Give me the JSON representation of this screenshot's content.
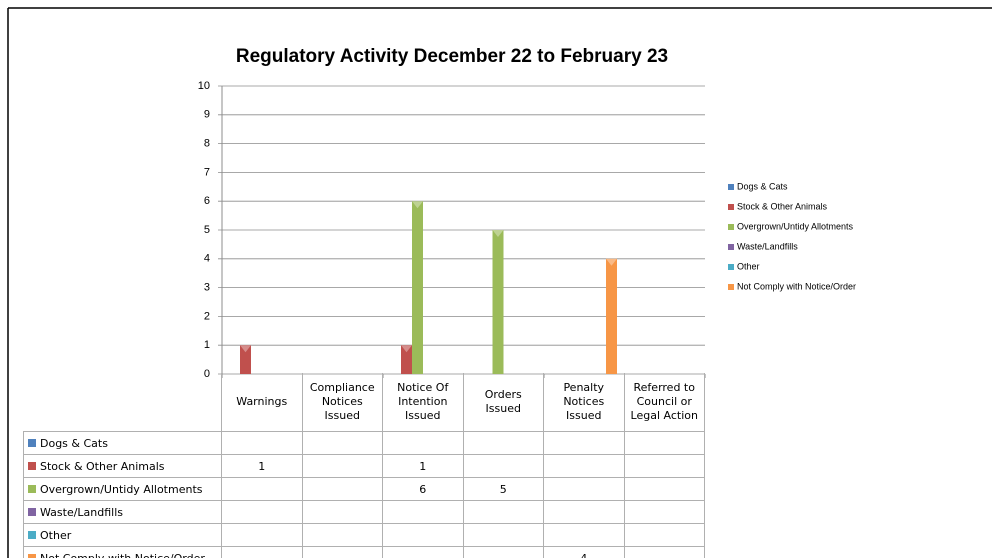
{
  "chart_data": {
    "type": "bar",
    "title": "Regulatory Activity December 22 to February 23",
    "categories": [
      "Warnings",
      "Compliance Notices Issued",
      "Notice Of Intention Issued",
      "Orders Issued",
      "Penalty Notices Issued",
      "Referred to Council or Legal Action"
    ],
    "series": [
      {
        "name": "Dogs & Cats",
        "color": "#4f81bd",
        "values": [
          null,
          null,
          null,
          null,
          null,
          null
        ]
      },
      {
        "name": "Stock & Other Animals",
        "color": "#c0504d",
        "values": [
          1,
          null,
          1,
          null,
          null,
          null
        ]
      },
      {
        "name": "Overgrown/Untidy Allotments",
        "color": "#9bbb59",
        "values": [
          null,
          null,
          6,
          5,
          null,
          null
        ]
      },
      {
        "name": "Waste/Landfills",
        "color": "#8064a2",
        "values": [
          null,
          null,
          null,
          null,
          null,
          null
        ]
      },
      {
        "name": "Other",
        "color": "#4bacc6",
        "values": [
          null,
          null,
          null,
          null,
          null,
          null
        ]
      },
      {
        "name": "Not Comply with Notice/Order",
        "color": "#f79646",
        "values": [
          null,
          null,
          null,
          null,
          4,
          null
        ]
      }
    ],
    "ylim": [
      0,
      10
    ],
    "yticks": [
      0,
      1,
      2,
      3,
      4,
      5,
      6,
      7,
      8,
      9,
      10
    ],
    "grid": true,
    "legend": "right"
  }
}
